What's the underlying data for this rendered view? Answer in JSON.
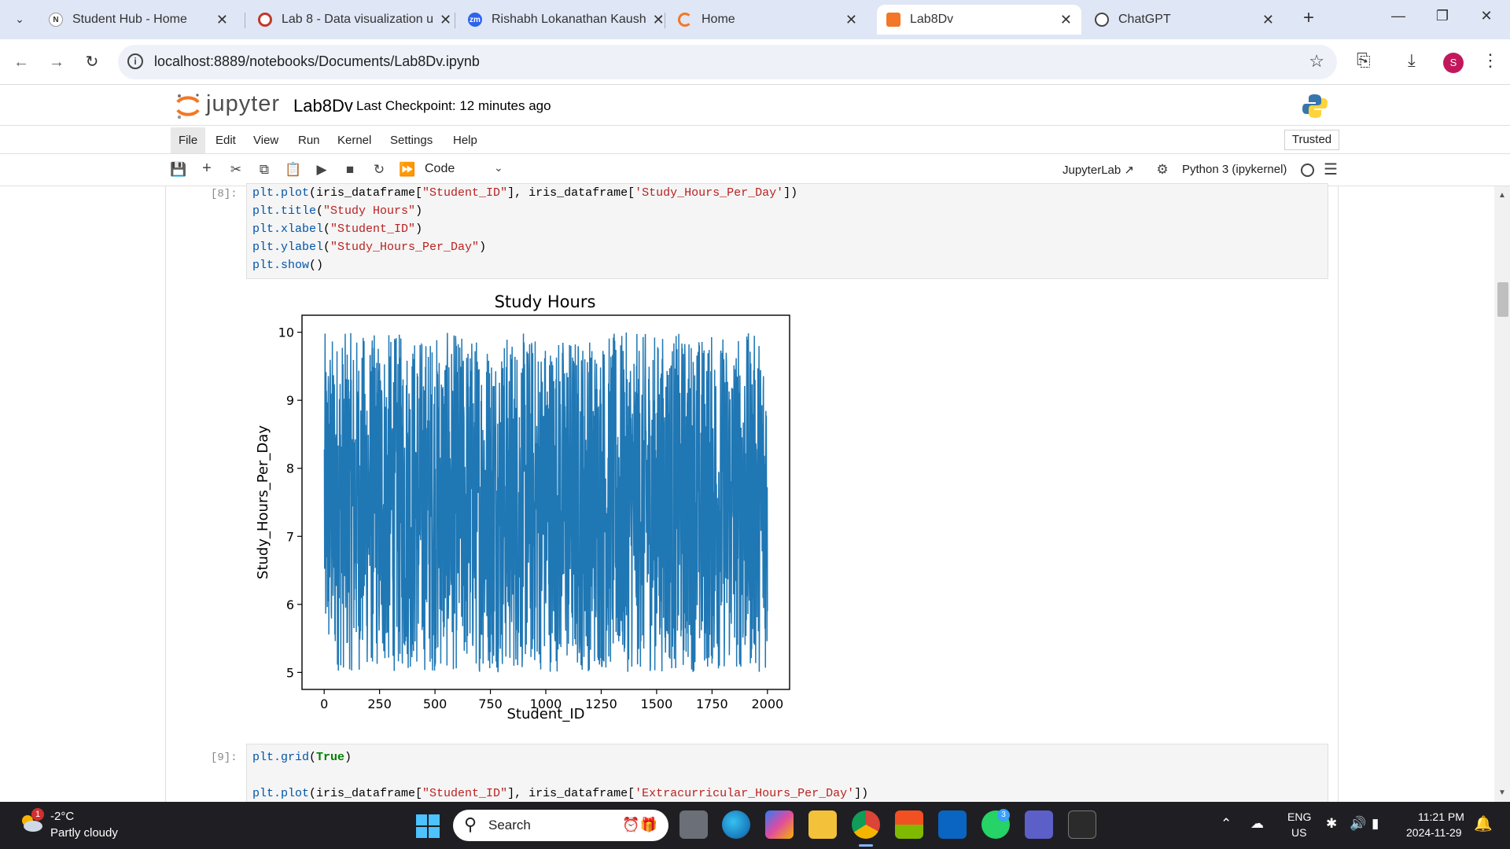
{
  "browser": {
    "tabs": [
      {
        "label": "Student Hub - Home",
        "icon": "notion-icon",
        "active": false
      },
      {
        "label": "Lab 8 - Data visualization u",
        "icon": "college-icon",
        "active": false
      },
      {
        "label": "Rishabh Lokanathan Kaush",
        "icon": "zoom-icon",
        "active": false
      },
      {
        "label": "Home",
        "icon": "jupyter-icon",
        "active": false
      },
      {
        "label": "Lab8Dv",
        "icon": "notebook-icon",
        "active": true
      },
      {
        "label": "ChatGPT",
        "icon": "openai-icon",
        "active": false
      }
    ],
    "url": "localhost:8889/notebooks/Documents/Lab8Dv.ipynb",
    "profile_initial": "S"
  },
  "jupyter": {
    "logo_text": "jupyter",
    "notebook_name": "Lab8Dv",
    "checkpoint": "Last Checkpoint: 12 minutes ago",
    "menu": [
      "File",
      "Edit",
      "View",
      "Run",
      "Kernel",
      "Settings",
      "Help"
    ],
    "trusted": "Trusted",
    "cell_type": "Code",
    "jupyterlab_label": "JupyterLab",
    "kernel_label": "Python 3 (ipykernel)"
  },
  "cells": {
    "cell8": {
      "prompt": "[8]:",
      "lines": [
        "plt.plot(iris_dataframe[\"Student_ID\"], iris_dataframe['Study_Hours_Per_Day'])",
        "plt.title(\"Study Hours\")",
        "plt.xlabel(\"Student_ID\")",
        "plt.ylabel(\"Study_Hours_Per_Day\")",
        "plt.show()"
      ]
    },
    "cell9": {
      "prompt": "[9]:",
      "lines": [
        "plt.grid(True)",
        "",
        "plt.plot(iris_dataframe[\"Student_ID\"], iris_dataframe['Extracurricular_Hours_Per_Day'])"
      ]
    }
  },
  "chart_data": {
    "type": "line",
    "title": "Study Hours",
    "xlabel": "Student_ID",
    "ylabel": "Study_Hours_Per_Day",
    "xlim": [
      -100,
      2100
    ],
    "ylim": [
      4.75,
      10.25
    ],
    "xticks": [
      0,
      250,
      500,
      750,
      1000,
      1250,
      1500,
      1750,
      2000
    ],
    "yticks": [
      5,
      6,
      7,
      8,
      9,
      10
    ],
    "series": [
      {
        "color": "#1f77b4",
        "x_range": [
          1,
          2000
        ],
        "y_range": [
          5.0,
          10.0
        ],
        "n_points": 2000,
        "note_values": "dense noisy series spanning 5.0 to 10.0 across all 2000 students"
      }
    ],
    "grid": false
  },
  "taskbar": {
    "temperature": "-2°C",
    "weather": "Partly cloudy",
    "weather_badge": "1",
    "search_label": "Search",
    "lang_top": "ENG",
    "lang_bottom": "US",
    "time": "11:21 PM",
    "date": "2024-11-29",
    "whatsapp_badge": "3"
  },
  "colors": {
    "tabstrip": "#dfe6f5",
    "plot_line": "#1f77b4",
    "taskbar": "#1f1f23",
    "jupyter_orange": "#f37726"
  }
}
